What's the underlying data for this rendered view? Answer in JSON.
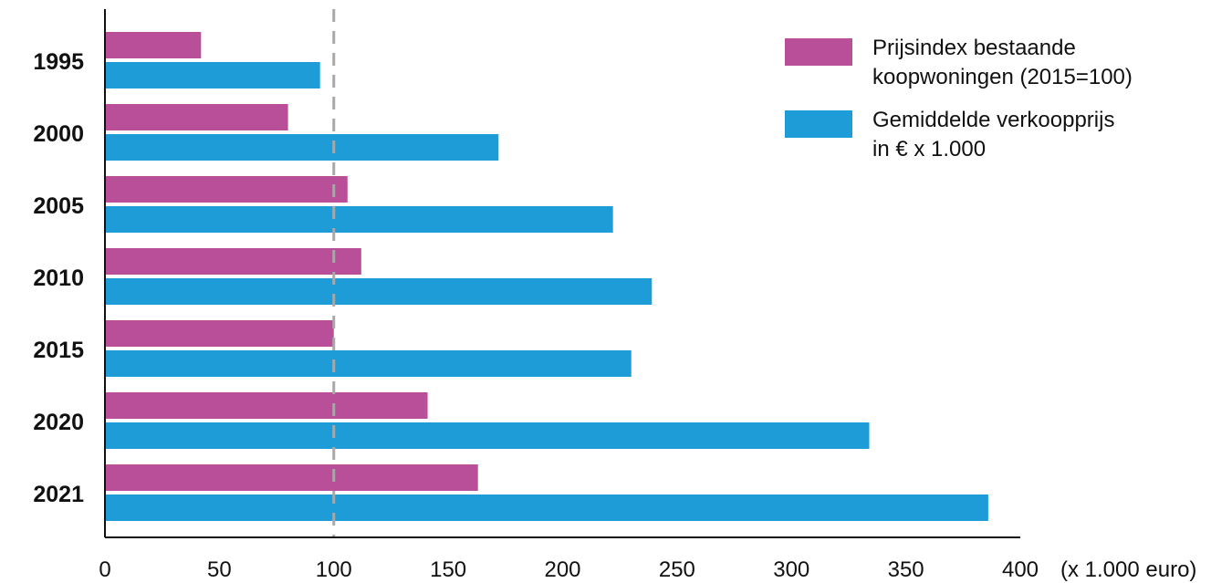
{
  "chart_data": {
    "type": "bar",
    "orientation": "horizontal",
    "categories": [
      "1995",
      "2000",
      "2005",
      "2010",
      "2015",
      "2020",
      "2021"
    ],
    "series": [
      {
        "name": "Prijsindex bestaande koopwoningen (2015=100)",
        "legend_lines": [
          "Prijsindex bestaande",
          "koopwoningen (2015=100)"
        ],
        "color": "#b84f98",
        "values": [
          42,
          80,
          106,
          112,
          100,
          141,
          163
        ]
      },
      {
        "name": "Gemiddelde verkoopprijs in € x 1.000",
        "legend_lines": [
          "Gemiddelde verkoopprijs",
          "in € x 1.000"
        ],
        "color": "#1e9cd8",
        "values": [
          94,
          172,
          222,
          239,
          230,
          334,
          386
        ]
      }
    ],
    "x_ticks": [
      "0",
      "50",
      "100",
      "150",
      "200",
      "250",
      "300",
      "350",
      "400"
    ],
    "xlim": [
      0,
      400
    ],
    "x_unit_label": "(x 1.000 euro)",
    "reference_line": {
      "value": 100,
      "style": "dashed",
      "color": "#a8a8a8"
    },
    "legend_position": "top-right",
    "grid": false
  }
}
